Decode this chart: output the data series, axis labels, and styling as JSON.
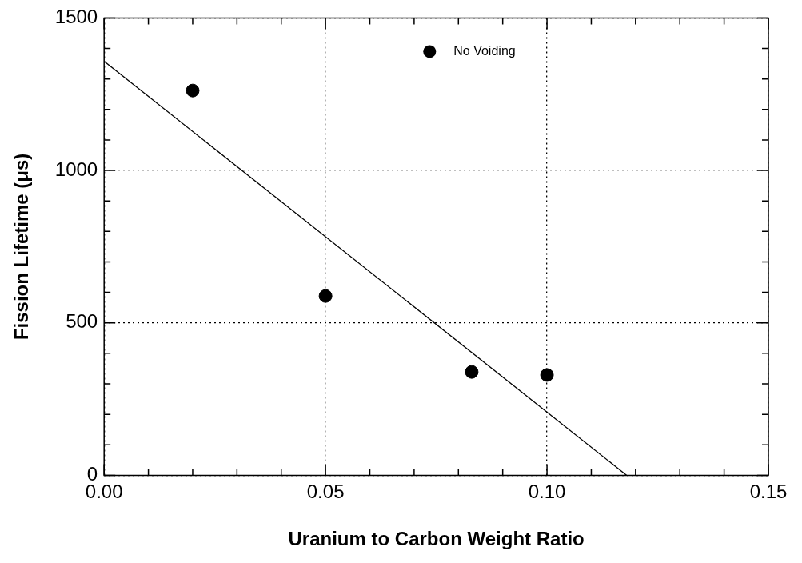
{
  "chart_data": {
    "type": "scatter",
    "xlabel": "Uranium to Carbon Weight Ratio",
    "ylabel": "Fission Lifetime (μs)",
    "series": [
      {
        "name": "No Voiding",
        "color": "#000000",
        "x": [
          0.02,
          0.05,
          0.083,
          0.1
        ],
        "values": [
          1262,
          588,
          339,
          329
        ]
      },
      {
        "type": "line",
        "color": "#000000",
        "marker": "none",
        "x": [
          0,
          0.118
        ],
        "values": [
          1358,
          0
        ]
      }
    ],
    "xlim": [
      0,
      0.15
    ],
    "xticks": [
      {
        "value": 0,
        "label": "0.00"
      },
      {
        "value": 0.01,
        "label": null
      },
      {
        "value": 0.02,
        "label": null
      },
      {
        "value": 0.03,
        "label": null
      },
      {
        "value": 0.04,
        "label": null
      },
      {
        "value": 0.05,
        "label": "0.05"
      },
      {
        "value": 0.06,
        "label": null
      },
      {
        "value": 0.07,
        "label": null
      },
      {
        "value": 0.08,
        "label": null
      },
      {
        "value": 0.09,
        "label": null
      },
      {
        "value": 0.1,
        "label": "0.10"
      },
      {
        "value": 0.11,
        "label": null
      },
      {
        "value": 0.12,
        "label": null
      },
      {
        "value": 0.13,
        "label": null
      },
      {
        "value": 0.14,
        "label": null
      },
      {
        "value": 0.15,
        "label": "0.15"
      }
    ],
    "ylim": [
      0,
      1500
    ],
    "yticks": [
      0,
      {
        "value": 100,
        "label": null
      },
      {
        "value": 200,
        "label": null
      },
      {
        "value": 300,
        "label": null
      },
      {
        "value": 400,
        "label": null
      },
      500,
      {
        "value": 600,
        "label": null
      },
      {
        "value": 700,
        "label": null
      },
      {
        "value": 800,
        "label": null
      },
      {
        "value": 900,
        "label": null
      },
      1000,
      {
        "value": 1100,
        "label": null
      },
      {
        "value": 1200,
        "label": null
      },
      {
        "value": 1300,
        "label": null
      },
      {
        "value": 1400,
        "label": null
      },
      1500
    ],
    "grid": true,
    "legend": "top",
    "marker": "circle",
    "line_style": "solid"
  }
}
